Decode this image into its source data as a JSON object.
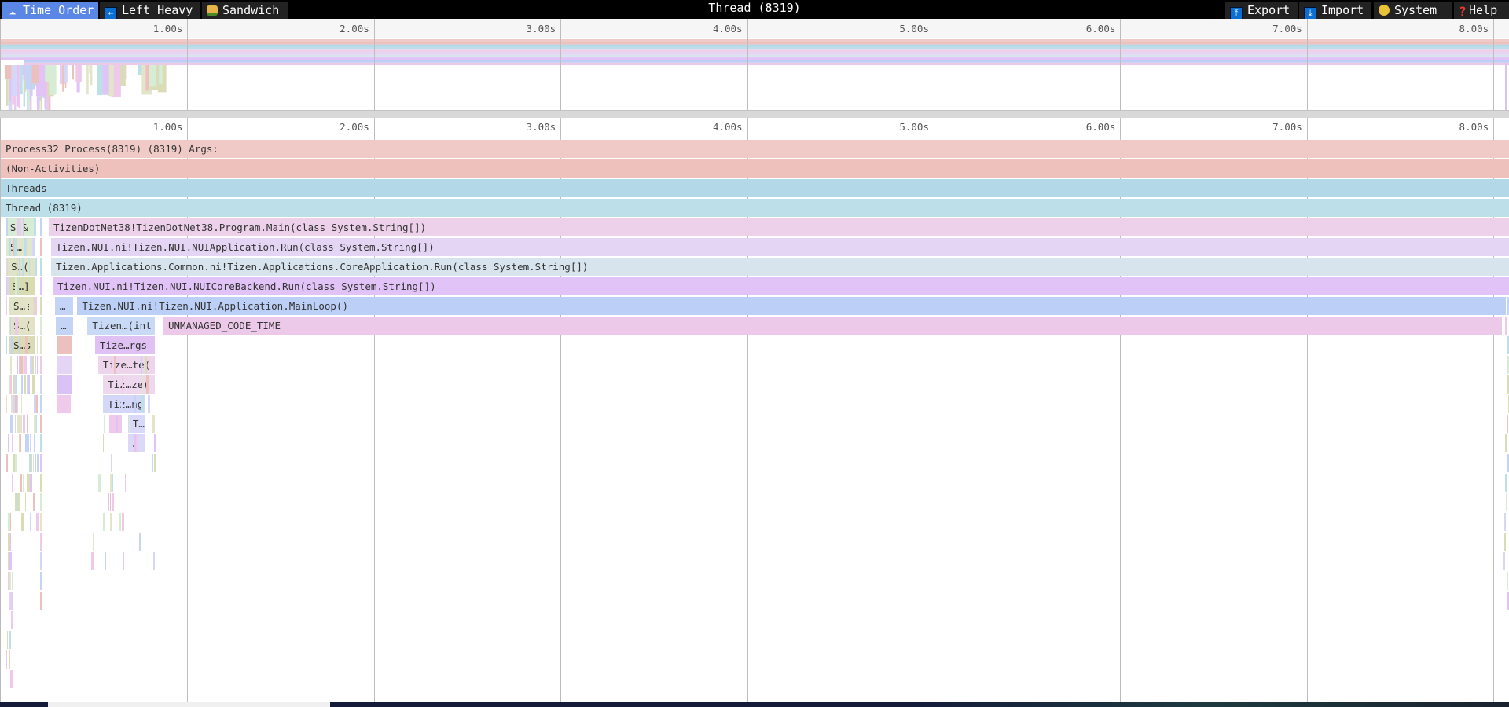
{
  "toolbar": {
    "left_buttons": [
      {
        "label": "Time Order",
        "icon": "time-order-icon",
        "active": true
      },
      {
        "label": "Left Heavy",
        "icon": "arrow-left-icon",
        "active": false
      },
      {
        "label": "Sandwich",
        "icon": "sandwich-icon",
        "active": false
      }
    ],
    "title": "Thread (8319)",
    "right_buttons": [
      {
        "label": "Export",
        "icon": "export-icon"
      },
      {
        "label": "Import",
        "icon": "import-icon"
      },
      {
        "label": "System",
        "icon": "palette-icon"
      },
      {
        "label": "Help",
        "icon": "help-icon"
      }
    ]
  },
  "timeline": {
    "ticks": [
      "1.00s",
      "2.00s",
      "3.00s",
      "4.00s",
      "5.00s",
      "6.00s",
      "7.00s",
      "8.00s"
    ]
  },
  "flamegraph": {
    "frames": [
      {
        "row": 0,
        "start": 0.0,
        "end": 8.1,
        "label": "Process32 Process(8319) (8319) Args:",
        "color": "#efcac7"
      },
      {
        "row": 1,
        "start": 0.0,
        "end": 8.1,
        "label": "(Non-Activities)",
        "color": "#eec1bd"
      },
      {
        "row": 2,
        "start": 0.0,
        "end": 8.1,
        "label": "Threads",
        "color": "#b3d9e9"
      },
      {
        "row": 3,
        "start": 0.0,
        "end": 8.1,
        "label": "Thread (8319)",
        "color": "#bcdfe9"
      },
      {
        "row": 4,
        "start": 0.025,
        "end": 0.19,
        "label": "S…&",
        "color": "#d6ecd5"
      },
      {
        "row": 4,
        "start": 0.257,
        "end": 8.1,
        "label": "TizenDotNet38!TizenDotNet38.Program.Main(class System.String[])",
        "color": "#edd1eb"
      },
      {
        "row": 5,
        "start": 0.025,
        "end": 0.185,
        "label": "S…(",
        "color": "#e2e5ca"
      },
      {
        "row": 5,
        "start": 0.27,
        "end": 8.1,
        "label": "Tizen.NUI.ni!Tizen.NUI.NUIApplication.Run(class System.String[])",
        "color": "#e5d5f5"
      },
      {
        "row": 6,
        "start": 0.03,
        "end": 0.19,
        "label": "S…(",
        "color": "#e0e4c6"
      },
      {
        "row": 6,
        "start": 0.27,
        "end": 8.1,
        "label": "Tizen.Applications.Common.ni!Tizen.Applications.CoreApplication.Run(class System.String[])",
        "color": "#d7e4ee"
      },
      {
        "row": 7,
        "start": 0.034,
        "end": 0.19,
        "label": "S…]",
        "color": "#d9dcb0"
      },
      {
        "row": 7,
        "start": 0.278,
        "end": 8.1,
        "label": "Tizen.NUI.ni!Tizen.NUI.NUICoreBackend.Run(class System.String[])",
        "color": "#e2c3f7"
      },
      {
        "row": 8,
        "start": 0.042,
        "end": 0.19,
        "label": "S…s",
        "color": "#e2e3c6"
      },
      {
        "row": 8,
        "start": 0.29,
        "end": 0.39,
        "label": "…",
        "color": "#c4d4f7"
      },
      {
        "row": 8,
        "start": 0.41,
        "end": 8.07,
        "label": "Tizen.NUI.ni!Tizen.NUI.Application.MainLoop()",
        "color": "#bcd0f7"
      },
      {
        "row": 9,
        "start": 0.042,
        "end": 0.19,
        "label": "S…(",
        "color": "#e2e3c6"
      },
      {
        "row": 9,
        "start": 0.295,
        "end": 0.39,
        "label": "…",
        "color": "#c4d4f7"
      },
      {
        "row": 9,
        "start": 0.465,
        "end": 0.83,
        "label": "Tizen…(int",
        "color": "#c9daf7"
      },
      {
        "row": 9,
        "start": 0.872,
        "end": 8.05,
        "label": "UNMANAGED_CODE_TIME",
        "color": "#ecc9e8"
      },
      {
        "row": 10,
        "start": 0.042,
        "end": 0.186,
        "label": "S…s",
        "color": "#dadcb5"
      },
      {
        "row": 10,
        "start": 0.3,
        "end": 0.383,
        "label": "",
        "color": "#ecc1bd"
      },
      {
        "row": 10,
        "start": 0.505,
        "end": 0.83,
        "label": "Tize…rgs",
        "color": "#dfc1f3"
      },
      {
        "row": 11,
        "start": 0.3,
        "end": 0.383,
        "label": "",
        "color": "#e4d4f6"
      },
      {
        "row": 11,
        "start": 0.522,
        "end": 0.83,
        "label": "Tize…te(",
        "color": "#eed5ec"
      },
      {
        "row": 12,
        "start": 0.3,
        "end": 0.383,
        "label": "",
        "color": "#d9c2f5"
      },
      {
        "row": 12,
        "start": 0.548,
        "end": 0.83,
        "label": "Tiz…ze(",
        "color": "#eed8ee"
      },
      {
        "row": 13,
        "start": 0.303,
        "end": 0.38,
        "label": "",
        "color": "#efcaea"
      },
      {
        "row": 13,
        "start": 0.548,
        "end": 0.78,
        "label": "Tiz…ng",
        "color": "#d5d7f8"
      },
      {
        "row": 14,
        "start": 0.58,
        "end": 0.655,
        "label": "",
        "color": "#efc9ea"
      },
      {
        "row": 14,
        "start": 0.682,
        "end": 0.78,
        "label": "T…",
        "color": "#d8d8f8"
      },
      {
        "row": 15,
        "start": 0.682,
        "end": 0.78,
        "label": "…",
        "color": "#dcd8f8"
      }
    ]
  }
}
